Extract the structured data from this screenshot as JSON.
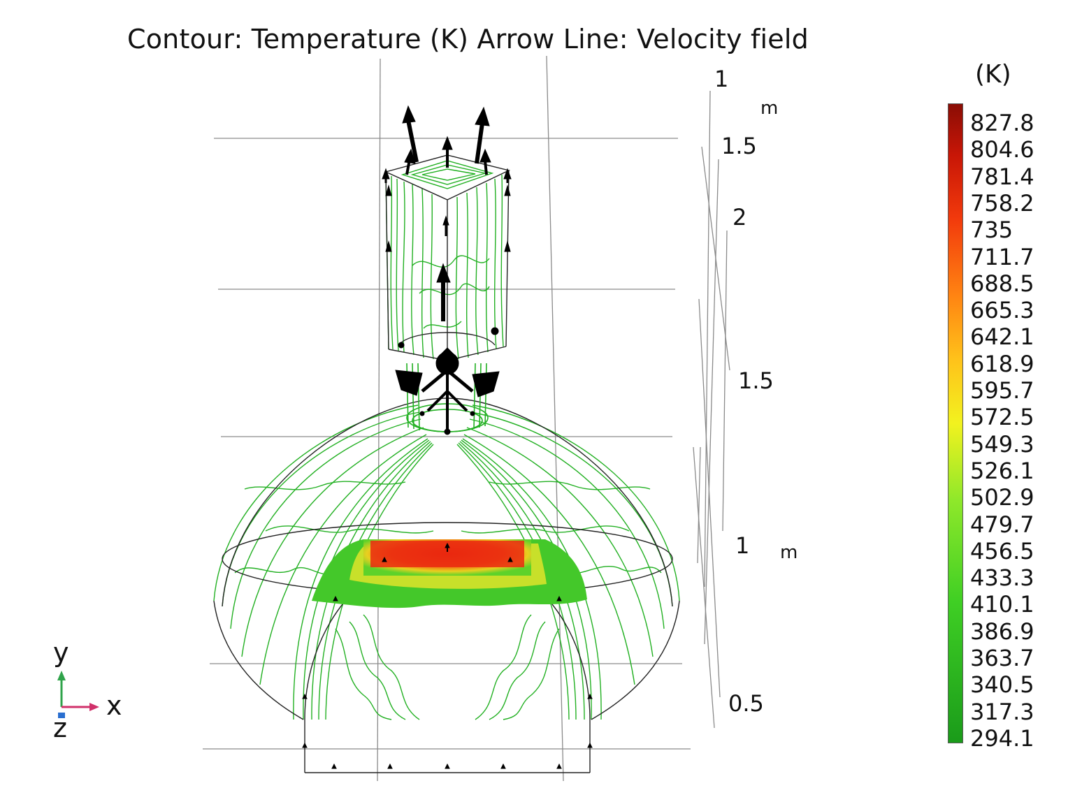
{
  "title": "Contour: Temperature (K)  Arrow Line: Velocity field",
  "view_axes": {
    "z_ticks": [
      "1",
      "1.5",
      "2"
    ],
    "y_ticks": [
      "1.5",
      "1",
      "0.5"
    ],
    "unit_top": "m",
    "unit_mid": "m"
  },
  "colorbar": {
    "unit": "(K)",
    "ticks": [
      "827.8",
      "804.6",
      "781.4",
      "758.2",
      "735",
      "711.7",
      "688.5",
      "665.3",
      "642.1",
      "618.9",
      "595.7",
      "572.5",
      "549.3",
      "526.1",
      "502.9",
      "479.7",
      "456.5",
      "433.3",
      "410.1",
      "386.9",
      "363.7",
      "340.5",
      "317.3",
      "294.1"
    ],
    "min": 294.1,
    "max": 827.8,
    "colors": {
      "low": "#1a9b1a",
      "mid": "#f2f21f",
      "high": "#8a0d05"
    }
  },
  "triad": {
    "y": "y",
    "x": "x",
    "z": "z"
  },
  "colors": {
    "contour": "#22b022",
    "arrow": "#000000",
    "gridline": "#8a8a8a",
    "hot_region": "#ef3a12"
  }
}
